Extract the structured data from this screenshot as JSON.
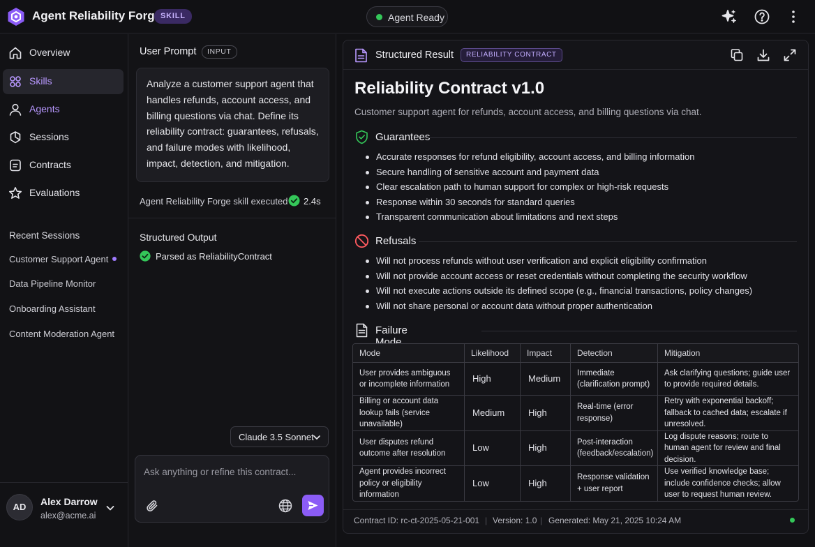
{
  "app": {
    "title": "Agent Reliability Forge",
    "badge": "SKILL",
    "status": "Agent Ready",
    "accent_color": "#8b5cf6",
    "status_color": "#34c759"
  },
  "header_icons": [
    "sparkle-icon",
    "help-icon",
    "more-vertical-icon"
  ],
  "sidebar": {
    "items": [
      {
        "label": "Overview",
        "icon": "home-icon"
      },
      {
        "label": "Skills",
        "icon": "skills-icon",
        "active": true
      },
      {
        "label": "Agents",
        "icon": "user-icon"
      },
      {
        "label": "Sessions",
        "icon": "sessions-icon"
      },
      {
        "label": "Contracts",
        "icon": "contract-icon"
      },
      {
        "label": "Evaluations",
        "icon": "star-icon"
      }
    ],
    "recent_title": "Recent Sessions",
    "recent": [
      "Customer Support Agent",
      "Data Pipeline Monitor",
      "Onboarding Assistant",
      "Content Moderation Agent"
    ],
    "user": {
      "initials": "AD",
      "name": "Alex Darrow",
      "email": "alex@acme.ai"
    }
  },
  "prompt_panel": {
    "title": "User Prompt",
    "badge": "INPUT",
    "prompt": "Analyze a customer support agent that handles refunds, account access, and billing questions via chat. Define its reliability contract: guarantees, refusals, and failure modes with likelihood, impact, detection, and mitigation.",
    "exec_text": "Agent Reliability Forge skill executed",
    "exec_time": "2.4s",
    "structured_title": "Structured Output",
    "structured_status": "Parsed as ReliabilityContract",
    "model": "Claude 3.5 Sonnet",
    "composer_placeholder": "Ask anything or refine this contract..."
  },
  "result": {
    "header": "Structured Result",
    "badge": "RELIABILITY CONTRACT",
    "title": "Reliability Contract v1.0",
    "subtitle": "Customer support agent for refunds, account access, and billing questions via chat.",
    "guarantees_title": "Guarantees",
    "guarantees": [
      "Accurate responses for refund eligibility, account access, and billing information",
      "Secure handling of sensitive account and payment data",
      "Clear escalation path to human support for complex or high-risk requests",
      "Response within 30 seconds for standard queries",
      "Transparent communication about limitations and next steps"
    ],
    "refusals_title": "Refusals",
    "refusals": [
      "Will not process refunds without user verification and explicit eligibility confirmation",
      "Will not provide account access or reset credentials without completing the security workflow",
      "Will not execute actions outside its defined scope (e.g., financial transactions, policy changes)",
      "Will not share personal or account data without proper authentication"
    ],
    "catalog_title": "Failure Mode Catalog",
    "table": {
      "headers": [
        "Mode",
        "Likelihood",
        "Impact",
        "Detection",
        "Mitigation"
      ],
      "rows": [
        {
          "mode": "User provides ambiguous or incomplete information",
          "likelihood": "High",
          "impact": "Medium",
          "detection": "Immediate (clarification prompt)",
          "mitigation": "Ask clarifying questions; guide user to provide required details."
        },
        {
          "mode": "Billing or account data lookup fails (service unavailable)",
          "likelihood": "Medium",
          "impact": "High",
          "detection": "Real-time (error response)",
          "mitigation": "Retry with exponential backoff; fallback to cached data; escalate if unresolved."
        },
        {
          "mode": "User disputes refund outcome after resolution",
          "likelihood": "Low",
          "impact": "High",
          "detection": "Post-interaction (feedback/escalation)",
          "mitigation": "Log dispute reasons; route to human agent for review and final decision."
        },
        {
          "mode": "Agent provides incorrect policy or eligibility information",
          "likelihood": "Low",
          "impact": "High",
          "detection": "Response validation + user report",
          "mitigation": "Use verified knowledge base; include confidence checks; allow user to request human review."
        }
      ]
    },
    "footer": {
      "contract_id": "Contract ID: rc-ct-2025-05-21-001",
      "version": "Version: 1.0",
      "generated": "Generated: May 21, 2025 10:24 AM"
    }
  }
}
